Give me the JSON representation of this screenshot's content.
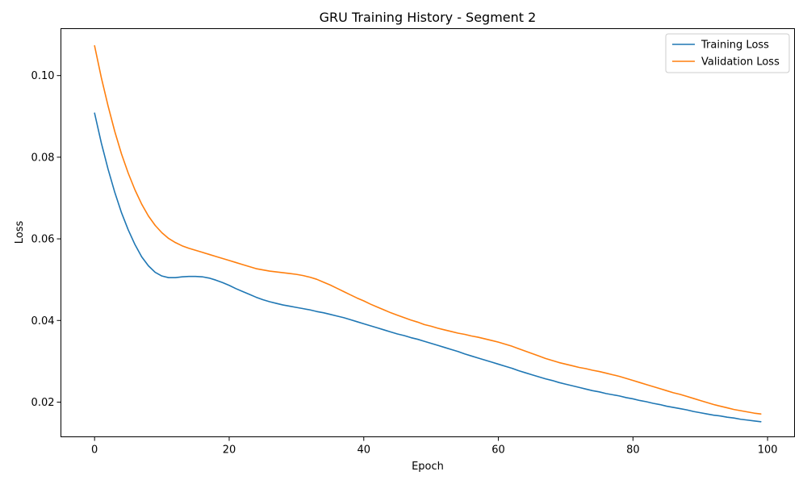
{
  "chart_data": {
    "type": "line",
    "title": "GRU Training History - Segment 2",
    "xlabel": "Epoch",
    "ylabel": "Loss",
    "xlim": [
      -5,
      104
    ],
    "ylim": [
      0.0115,
      0.1115
    ],
    "xticks": [
      0,
      20,
      40,
      60,
      80,
      100
    ],
    "xtick_labels": [
      "0",
      "20",
      "40",
      "60",
      "80",
      "100"
    ],
    "yticks": [
      0.02,
      0.04,
      0.06,
      0.08,
      0.1
    ],
    "ytick_labels": [
      "0.02",
      "0.04",
      "0.06",
      "0.08",
      "0.10"
    ],
    "grid": false,
    "legend_position": "top-right",
    "x": [
      0,
      1,
      2,
      3,
      4,
      5,
      6,
      7,
      8,
      9,
      10,
      11,
      12,
      13,
      14,
      15,
      16,
      17,
      18,
      19,
      20,
      21,
      22,
      23,
      24,
      25,
      26,
      27,
      28,
      29,
      30,
      31,
      32,
      33,
      34,
      35,
      36,
      37,
      38,
      39,
      40,
      41,
      42,
      43,
      44,
      45,
      46,
      47,
      48,
      49,
      50,
      51,
      52,
      53,
      54,
      55,
      56,
      57,
      58,
      59,
      60,
      61,
      62,
      63,
      64,
      65,
      66,
      67,
      68,
      69,
      70,
      71,
      72,
      73,
      74,
      75,
      76,
      77,
      78,
      79,
      80,
      81,
      82,
      83,
      84,
      85,
      86,
      87,
      88,
      89,
      90,
      91,
      92,
      93,
      94,
      95,
      96,
      97,
      98,
      99
    ],
    "series": [
      {
        "name": "Training Loss",
        "color": "#1f77b4",
        "values": [
          0.0908,
          0.0835,
          0.0771,
          0.0714,
          0.0664,
          0.0622,
          0.0586,
          0.0556,
          0.0534,
          0.0518,
          0.0509,
          0.0505,
          0.0505,
          0.0507,
          0.0508,
          0.0508,
          0.0507,
          0.0504,
          0.0499,
          0.0493,
          0.0486,
          0.0478,
          0.0471,
          0.0464,
          0.0457,
          0.0451,
          0.0446,
          0.0442,
          0.0438,
          0.0435,
          0.0432,
          0.0429,
          0.0426,
          0.0422,
          0.0419,
          0.0415,
          0.0411,
          0.0407,
          0.0402,
          0.0397,
          0.0392,
          0.0387,
          0.0382,
          0.0377,
          0.0372,
          0.0367,
          0.0363,
          0.0358,
          0.0354,
          0.0349,
          0.0344,
          0.0339,
          0.0334,
          0.0329,
          0.0324,
          0.0318,
          0.0313,
          0.0308,
          0.0303,
          0.0298,
          0.0293,
          0.0288,
          0.0283,
          0.0277,
          0.0272,
          0.0267,
          0.0262,
          0.0257,
          0.0253,
          0.0248,
          0.0244,
          0.024,
          0.0236,
          0.0232,
          0.0228,
          0.0225,
          0.0221,
          0.0218,
          0.0215,
          0.0211,
          0.0208,
          0.0204,
          0.0201,
          0.0197,
          0.0194,
          0.019,
          0.0187,
          0.0184,
          0.0181,
          0.0177,
          0.0174,
          0.0171,
          0.0168,
          0.0166,
          0.0163,
          0.0161,
          0.0158,
          0.0156,
          0.0154,
          0.0152
        ]
      },
      {
        "name": "Validation Loss",
        "color": "#ff7f0e",
        "values": [
          0.1073,
          0.0995,
          0.0926,
          0.0863,
          0.0808,
          0.0761,
          0.072,
          0.0685,
          0.0656,
          0.0633,
          0.0615,
          0.0601,
          0.0591,
          0.0583,
          0.0577,
          0.0572,
          0.0567,
          0.0562,
          0.0557,
          0.0552,
          0.0547,
          0.0542,
          0.0537,
          0.0532,
          0.0527,
          0.0524,
          0.0521,
          0.0519,
          0.0517,
          0.0515,
          0.0513,
          0.051,
          0.0506,
          0.0501,
          0.0494,
          0.0487,
          0.0479,
          0.0471,
          0.0463,
          0.0455,
          0.0448,
          0.044,
          0.0433,
          0.0426,
          0.0419,
          0.0413,
          0.0407,
          0.0401,
          0.0396,
          0.039,
          0.0386,
          0.0381,
          0.0377,
          0.0373,
          0.0369,
          0.0366,
          0.0362,
          0.0359,
          0.0355,
          0.0351,
          0.0347,
          0.0342,
          0.0337,
          0.0331,
          0.0325,
          0.0319,
          0.0313,
          0.0307,
          0.0302,
          0.0297,
          0.0293,
          0.0289,
          0.0285,
          0.0282,
          0.0278,
          0.0275,
          0.0271,
          0.0267,
          0.0263,
          0.0258,
          0.0253,
          0.0248,
          0.0243,
          0.0238,
          0.0233,
          0.0228,
          0.0223,
          0.0219,
          0.0214,
          0.0209,
          0.0204,
          0.0199,
          0.0194,
          0.019,
          0.0186,
          0.0182,
          0.0179,
          0.0176,
          0.0173,
          0.0171
        ]
      }
    ]
  }
}
